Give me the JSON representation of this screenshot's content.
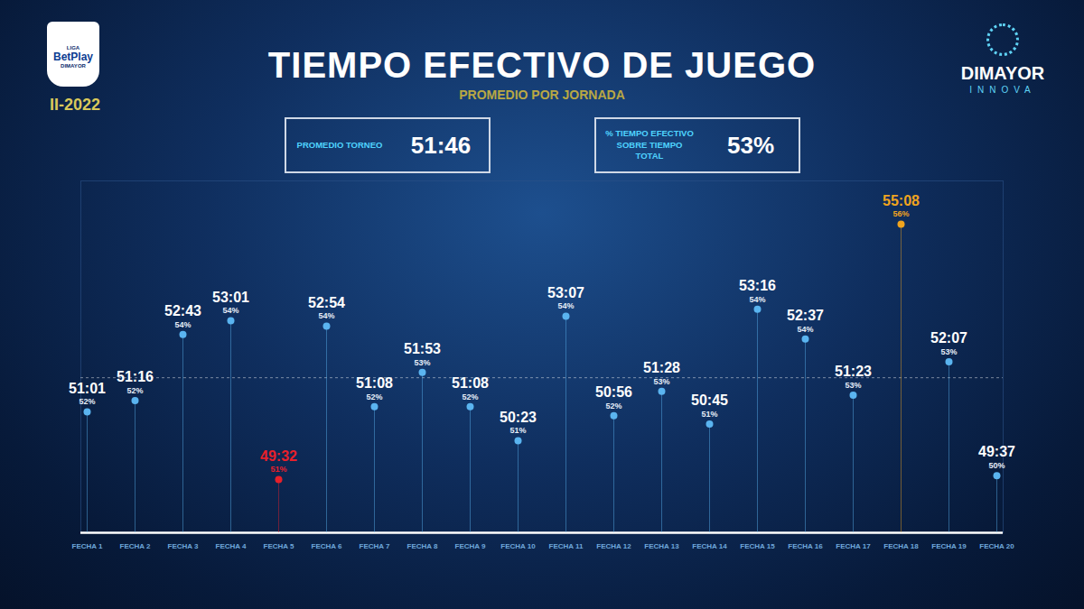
{
  "chart_data": {
    "type": "lollipop",
    "title": "TIEMPO EFECTIVO DE JUEGO",
    "subtitle": "PROMEDIO POR JORNADA",
    "categories": [
      "FECHA 1",
      "FECHA 2",
      "FECHA 3",
      "FECHA 4",
      "FECHA 5",
      "FECHA 6",
      "FECHA 7",
      "FECHA 8",
      "FECHA 9",
      "FECHA 10",
      "FECHA 11",
      "FECHA 12",
      "FECHA 13",
      "FECHA 14",
      "FECHA 15",
      "FECHA 16",
      "FECHA 17",
      "FECHA 18",
      "FECHA 19",
      "FECHA 20"
    ],
    "values": [
      3061,
      3076,
      3163,
      3181,
      2972,
      3174,
      3068,
      3113,
      3068,
      3023,
      3187,
      3056,
      3088,
      3045,
      3196,
      3157,
      3083,
      3308,
      3127,
      2977
    ],
    "value_labels": [
      "51:01",
      "51:16",
      "52:43",
      "53:01",
      "49:32",
      "52:54",
      "51:08",
      "51:53",
      "51:08",
      "50:23",
      "53:07",
      "50:56",
      "51:28",
      "50:45",
      "53:16",
      "52:37",
      "51:23",
      "55:08",
      "52:07",
      "49:37"
    ],
    "percentages": [
      52,
      52,
      54,
      54,
      51,
      54,
      52,
      53,
      52,
      51,
      54,
      52,
      53,
      51,
      54,
      54,
      53,
      56,
      53,
      50
    ],
    "percentage_labels": [
      "52%",
      "52%",
      "54%",
      "54%",
      "51%",
      "54%",
      "52%",
      "53%",
      "52%",
      "51%",
      "54%",
      "52%",
      "53%",
      "51%",
      "54%",
      "54%",
      "53%",
      "56%",
      "53%",
      "50%"
    ],
    "colors": [
      "#5ab4f0",
      "#5ab4f0",
      "#5ab4f0",
      "#5ab4f0",
      "#e8202a",
      "#5ab4f0",
      "#5ab4f0",
      "#5ab4f0",
      "#5ab4f0",
      "#5ab4f0",
      "#5ab4f0",
      "#5ab4f0",
      "#5ab4f0",
      "#5ab4f0",
      "#5ab4f0",
      "#5ab4f0",
      "#5ab4f0",
      "#f0a41e",
      "#5ab4f0",
      "#5ab4f0"
    ],
    "ylim": [
      2902,
      3365
    ],
    "average": 3106,
    "tick_labels": "x",
    "data_labels": true,
    "stats": [
      {
        "label": "PROMEDIO TORNEO",
        "value": "51:46"
      },
      {
        "label": "% TIEMPO EFECTIVO SOBRE TIEMPO TOTAL",
        "value": "53%"
      }
    ],
    "season": "II-2022",
    "logos": {
      "left": [
        "LIGA",
        "BetPlay",
        "DIMAYOR"
      ],
      "right": [
        "DIMAYOR",
        "INNOVA"
      ]
    }
  }
}
